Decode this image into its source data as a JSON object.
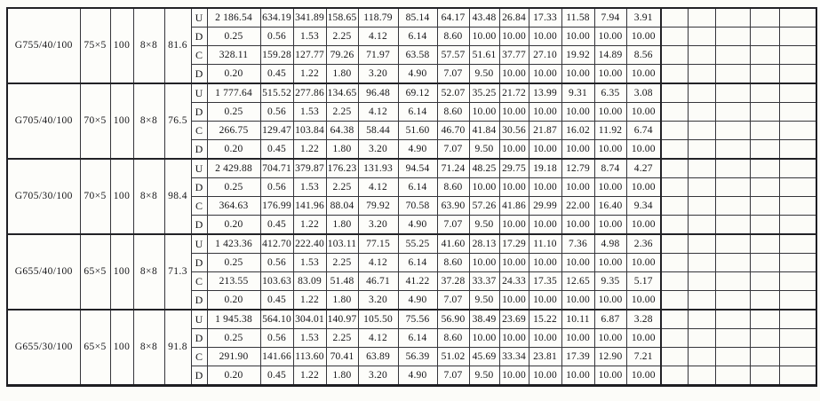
{
  "page": {
    "background_color": "#fcfcf9",
    "ink_color": "#141417",
    "description_row_types": [
      "U",
      "D",
      "C",
      "D"
    ]
  },
  "table": {
    "trailing_empty_columns": 5,
    "groups": [
      {
        "left_cells": [
          "G755/40/100",
          "75×5",
          "100",
          "8×8",
          "81.6"
        ],
        "rows": [
          {
            "type": "U",
            "values": [
              "2 186.54",
              "634.19",
              "341.89",
              "158.65",
              "118.79",
              "85.14",
              "64.17",
              "43.48",
              "26.84",
              "17.33",
              "11.58",
              "7.94",
              "3.91"
            ]
          },
          {
            "type": "D",
            "values": [
              "0.25",
              "0.56",
              "1.53",
              "2.25",
              "4.12",
              "6.14",
              "8.60",
              "10.00",
              "10.00",
              "10.00",
              "10.00",
              "10.00",
              "10.00"
            ]
          },
          {
            "type": "C",
            "values": [
              "328.11",
              "159.28",
              "127.77",
              "79.26",
              "71.97",
              "63.58",
              "57.57",
              "51.61",
              "37.77",
              "27.10",
              "19.92",
              "14.89",
              "8.56"
            ]
          },
          {
            "type": "D",
            "values": [
              "0.20",
              "0.45",
              "1.22",
              "1.80",
              "3.20",
              "4.90",
              "7.07",
              "9.50",
              "10.00",
              "10.00",
              "10.00",
              "10.00",
              "10.00"
            ]
          }
        ]
      },
      {
        "left_cells": [
          "G705/40/100",
          "70×5",
          "100",
          "8×8",
          "76.5"
        ],
        "rows": [
          {
            "type": "U",
            "values": [
              "1 777.64",
              "515.52",
              "277.86",
              "134.65",
              "96.48",
              "69.12",
              "52.07",
              "35.25",
              "21.72",
              "13.99",
              "9.31",
              "6.35",
              "3.08"
            ]
          },
          {
            "type": "D",
            "values": [
              "0.25",
              "0.56",
              "1.53",
              "2.25",
              "4.12",
              "6.14",
              "8.60",
              "10.00",
              "10.00",
              "10.00",
              "10.00",
              "10.00",
              "10.00"
            ]
          },
          {
            "type": "C",
            "values": [
              "266.75",
              "129.47",
              "103.84",
              "64.38",
              "58.44",
              "51.60",
              "46.70",
              "41.84",
              "30.56",
              "21.87",
              "16.02",
              "11.92",
              "6.74"
            ]
          },
          {
            "type": "D",
            "values": [
              "0.20",
              "0.45",
              "1.22",
              "1.80",
              "3.20",
              "4.90",
              "7.07",
              "9.50",
              "10.00",
              "10.00",
              "10.00",
              "10.00",
              "10.00"
            ]
          }
        ]
      },
      {
        "left_cells": [
          "G705/30/100",
          "70×5",
          "100",
          "8×8",
          "98.4"
        ],
        "rows": [
          {
            "type": "U",
            "values": [
              "2 429.88",
              "704.71",
              "379.87",
              "176.23",
              "131.93",
              "94.54",
              "71.24",
              "48.25",
              "29.75",
              "19.18",
              "12.79",
              "8.74",
              "4.27"
            ]
          },
          {
            "type": "D",
            "values": [
              "0.25",
              "0.56",
              "1.53",
              "2.25",
              "4.12",
              "6.14",
              "8.60",
              "10.00",
              "10.00",
              "10.00",
              "10.00",
              "10.00",
              "10.00"
            ]
          },
          {
            "type": "C",
            "values": [
              "364.63",
              "176.99",
              "141.96",
              "88.04",
              "79.92",
              "70.58",
              "63.90",
              "57.26",
              "41.86",
              "29.99",
              "22.00",
              "16.40",
              "9.34"
            ]
          },
          {
            "type": "D",
            "values": [
              "0.20",
              "0.45",
              "1.22",
              "1.80",
              "3.20",
              "4.90",
              "7.07",
              "9.50",
              "10.00",
              "10.00",
              "10.00",
              "10.00",
              "10.00"
            ]
          }
        ]
      },
      {
        "left_cells": [
          "G655/40/100",
          "65×5",
          "100",
          "8×8",
          "71.3"
        ],
        "rows": [
          {
            "type": "U",
            "values": [
              "1 423.36",
              "412.70",
              "222.40",
              "103.11",
              "77.15",
              "55.25",
              "41.60",
              "28.13",
              "17.29",
              "11.10",
              "7.36",
              "4.98",
              "2.36"
            ]
          },
          {
            "type": "D",
            "values": [
              "0.25",
              "0.56",
              "1.53",
              "2.25",
              "4.12",
              "6.14",
              "8.60",
              "10.00",
              "10.00",
              "10.00",
              "10.00",
              "10.00",
              "10.00"
            ]
          },
          {
            "type": "C",
            "values": [
              "213.55",
              "103.63",
              "83.09",
              "51.48",
              "46.71",
              "41.22",
              "37.28",
              "33.37",
              "24.33",
              "17.35",
              "12.65",
              "9.35",
              "5.17"
            ]
          },
          {
            "type": "D",
            "values": [
              "0.20",
              "0.45",
              "1.22",
              "1.80",
              "3.20",
              "4.90",
              "7.07",
              "9.50",
              "10.00",
              "10.00",
              "10.00",
              "10.00",
              "10.00"
            ]
          }
        ]
      },
      {
        "left_cells": [
          "G655/30/100",
          "65×5",
          "100",
          "8×8",
          "91.8"
        ],
        "rows": [
          {
            "type": "U",
            "values": [
              "1 945.38",
              "564.10",
              "304.01",
              "140.97",
              "105.50",
              "75.56",
              "56.90",
              "38.49",
              "23.69",
              "15.22",
              "10.11",
              "6.87",
              "3.28"
            ]
          },
          {
            "type": "D",
            "values": [
              "0.25",
              "0.56",
              "1.53",
              "2.25",
              "4.12",
              "6.14",
              "8.60",
              "10.00",
              "10.00",
              "10.00",
              "10.00",
              "10.00",
              "10.00"
            ]
          },
          {
            "type": "C",
            "values": [
              "291.90",
              "141.66",
              "113.60",
              "70.41",
              "63.89",
              "56.39",
              "51.02",
              "45.69",
              "33.34",
              "23.81",
              "17.39",
              "12.90",
              "7.21"
            ]
          },
          {
            "type": "D",
            "values": [
              "0.20",
              "0.45",
              "1.22",
              "1.80",
              "3.20",
              "4.90",
              "7.07",
              "9.50",
              "10.00",
              "10.00",
              "10.00",
              "10.00",
              "10.00"
            ]
          }
        ]
      }
    ]
  }
}
